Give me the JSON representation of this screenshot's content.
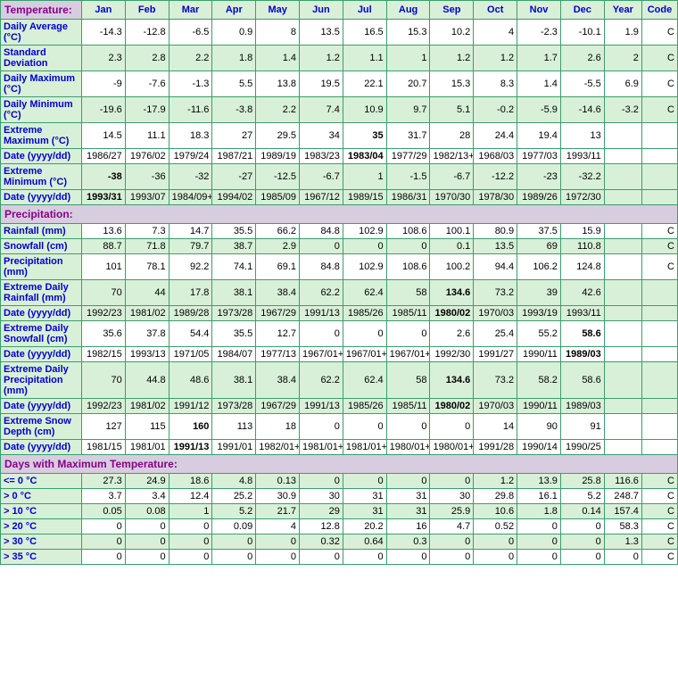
{
  "headers": [
    "Jan",
    "Feb",
    "Mar",
    "Apr",
    "May",
    "Jun",
    "Jul",
    "Aug",
    "Sep",
    "Oct",
    "Nov",
    "Dec",
    "Year",
    "Code"
  ],
  "sections": [
    {
      "title": "Temperature:",
      "rows": [
        {
          "label": "Daily Average (°C)",
          "alt": false,
          "cells": [
            "-14.3",
            "-12.8",
            "-6.5",
            "0.9",
            "8",
            "13.5",
            "16.5",
            "15.3",
            "10.2",
            "4",
            "-2.3",
            "-10.1",
            "1.9",
            "C"
          ]
        },
        {
          "label": "Standard Deviation",
          "alt": true,
          "cells": [
            "2.3",
            "2.8",
            "2.2",
            "1.8",
            "1.4",
            "1.2",
            "1.1",
            "1",
            "1.2",
            "1.2",
            "1.7",
            "2.6",
            "2",
            "C"
          ]
        },
        {
          "label": "Daily Maximum (°C)",
          "alt": false,
          "cells": [
            "-9",
            "-7.6",
            "-1.3",
            "5.5",
            "13.8",
            "19.5",
            "22.1",
            "20.7",
            "15.3",
            "8.3",
            "1.4",
            "-5.5",
            "6.9",
            "C"
          ]
        },
        {
          "label": "Daily Minimum (°C)",
          "alt": true,
          "cells": [
            "-19.6",
            "-17.9",
            "-11.6",
            "-3.8",
            "2.2",
            "7.4",
            "10.9",
            "9.7",
            "5.1",
            "-0.2",
            "-5.9",
            "-14.6",
            "-3.2",
            "C"
          ]
        },
        {
          "label": "Extreme Maximum (°C)",
          "alt": false,
          "cells": [
            "14.5",
            "11.1",
            "18.3",
            "27",
            "29.5",
            "34",
            "35",
            "31.7",
            "28",
            "24.4",
            "19.4",
            "13",
            "",
            ""
          ],
          "bold": [
            6
          ]
        },
        {
          "label": "Date (yyyy/dd)",
          "alt": false,
          "cells": [
            "1986/27",
            "1976/02",
            "1979/24",
            "1987/21",
            "1989/19",
            "1983/23",
            "1983/04",
            "1977/29",
            "1982/13+",
            "1968/03",
            "1977/03",
            "1993/11",
            "",
            ""
          ],
          "bold": [
            6
          ]
        },
        {
          "label": "Extreme Minimum (°C)",
          "alt": true,
          "cells": [
            "-38",
            "-36",
            "-32",
            "-27",
            "-12.5",
            "-6.7",
            "1",
            "-1.5",
            "-6.7",
            "-12.2",
            "-23",
            "-32.2",
            "",
            ""
          ],
          "bold": [
            0
          ]
        },
        {
          "label": "Date (yyyy/dd)",
          "alt": true,
          "cells": [
            "1993/31",
            "1993/07",
            "1984/09+",
            "1994/02",
            "1985/09",
            "1967/12",
            "1989/15",
            "1986/31",
            "1970/30",
            "1978/30",
            "1989/26",
            "1972/30",
            "",
            ""
          ],
          "bold": [
            0
          ]
        }
      ]
    },
    {
      "title": "Precipitation:",
      "rows": [
        {
          "label": "Rainfall (mm)",
          "alt": false,
          "cells": [
            "13.6",
            "7.3",
            "14.7",
            "35.5",
            "66.2",
            "84.8",
            "102.9",
            "108.6",
            "100.1",
            "80.9",
            "37.5",
            "15.9",
            "",
            "C"
          ]
        },
        {
          "label": "Snowfall (cm)",
          "alt": true,
          "cells": [
            "88.7",
            "71.8",
            "79.7",
            "38.7",
            "2.9",
            "0",
            "0",
            "0",
            "0.1",
            "13.5",
            "69",
            "110.8",
            "",
            "C"
          ]
        },
        {
          "label": "Precipitation (mm)",
          "alt": false,
          "cells": [
            "101",
            "78.1",
            "92.2",
            "74.1",
            "69.1",
            "84.8",
            "102.9",
            "108.6",
            "100.2",
            "94.4",
            "106.2",
            "124.8",
            "",
            "C"
          ]
        },
        {
          "label": "Extreme Daily Rainfall (mm)",
          "alt": true,
          "cells": [
            "70",
            "44",
            "17.8",
            "38.1",
            "38.4",
            "62.2",
            "62.4",
            "58",
            "134.6",
            "73.2",
            "39",
            "42.6",
            "",
            ""
          ],
          "bold": [
            8
          ]
        },
        {
          "label": "Date (yyyy/dd)",
          "alt": true,
          "cells": [
            "1992/23",
            "1981/02",
            "1989/28",
            "1973/28",
            "1967/29",
            "1991/13",
            "1985/26",
            "1985/11",
            "1980/02",
            "1970/03",
            "1993/19",
            "1993/11",
            "",
            ""
          ],
          "bold": [
            8
          ]
        },
        {
          "label": "Extreme Daily Snowfall (cm)",
          "alt": false,
          "cells": [
            "35.6",
            "37.8",
            "54.4",
            "35.5",
            "12.7",
            "0",
            "0",
            "0",
            "2.6",
            "25.4",
            "55.2",
            "58.6",
            "",
            ""
          ],
          "bold": [
            11
          ]
        },
        {
          "label": "Date (yyyy/dd)",
          "alt": false,
          "cells": [
            "1982/15",
            "1993/13",
            "1971/05",
            "1984/07",
            "1977/13",
            "1967/01+",
            "1967/01+",
            "1967/01+",
            "1992/30",
            "1991/27",
            "1990/11",
            "1989/03",
            "",
            ""
          ],
          "bold": [
            11
          ]
        },
        {
          "label": "Extreme Daily Precipitation (mm)",
          "alt": true,
          "cells": [
            "70",
            "44.8",
            "48.6",
            "38.1",
            "38.4",
            "62.2",
            "62.4",
            "58",
            "134.6",
            "73.2",
            "58.2",
            "58.6",
            "",
            ""
          ],
          "bold": [
            8
          ]
        },
        {
          "label": "Date (yyyy/dd)",
          "alt": true,
          "cells": [
            "1992/23",
            "1981/02",
            "1991/12",
            "1973/28",
            "1967/29",
            "1991/13",
            "1985/26",
            "1985/11",
            "1980/02",
            "1970/03",
            "1990/11",
            "1989/03",
            "",
            ""
          ],
          "bold": [
            8
          ]
        },
        {
          "label": "Extreme Snow Depth (cm)",
          "alt": false,
          "cells": [
            "127",
            "115",
            "160",
            "113",
            "18",
            "0",
            "0",
            "0",
            "0",
            "14",
            "90",
            "91",
            "",
            ""
          ],
          "bold": [
            2
          ]
        },
        {
          "label": "Date (yyyy/dd)",
          "alt": false,
          "cells": [
            "1981/15",
            "1981/01",
            "1991/13",
            "1991/01",
            "1982/01+",
            "1981/01+",
            "1981/01+",
            "1980/01+",
            "1980/01+",
            "1991/28",
            "1990/14",
            "1990/25",
            "",
            ""
          ],
          "bold": [
            2
          ]
        }
      ]
    },
    {
      "title": "Days with Maximum Temperature:",
      "rows": [
        {
          "label": "<= 0 °C",
          "alt": true,
          "cells": [
            "27.3",
            "24.9",
            "18.6",
            "4.8",
            "0.13",
            "0",
            "0",
            "0",
            "0",
            "1.2",
            "13.9",
            "25.8",
            "116.6",
            "C"
          ]
        },
        {
          "label": "> 0 °C",
          "alt": false,
          "cells": [
            "3.7",
            "3.4",
            "12.4",
            "25.2",
            "30.9",
            "30",
            "31",
            "31",
            "30",
            "29.8",
            "16.1",
            "5.2",
            "248.7",
            "C"
          ]
        },
        {
          "label": "> 10 °C",
          "alt": true,
          "cells": [
            "0.05",
            "0.08",
            "1",
            "5.2",
            "21.7",
            "29",
            "31",
            "31",
            "25.9",
            "10.6",
            "1.8",
            "0.14",
            "157.4",
            "C"
          ]
        },
        {
          "label": "> 20 °C",
          "alt": false,
          "cells": [
            "0",
            "0",
            "0",
            "0.09",
            "4",
            "12.8",
            "20.2",
            "16",
            "4.7",
            "0.52",
            "0",
            "0",
            "58.3",
            "C"
          ]
        },
        {
          "label": "> 30 °C",
          "alt": true,
          "cells": [
            "0",
            "0",
            "0",
            "0",
            "0",
            "0.32",
            "0.64",
            "0.3",
            "0",
            "0",
            "0",
            "0",
            "1.3",
            "C"
          ]
        },
        {
          "label": "> 35 °C",
          "alt": false,
          "cells": [
            "0",
            "0",
            "0",
            "0",
            "0",
            "0",
            "0",
            "0",
            "0",
            "0",
            "0",
            "0",
            "0",
            "C"
          ]
        }
      ]
    }
  ]
}
